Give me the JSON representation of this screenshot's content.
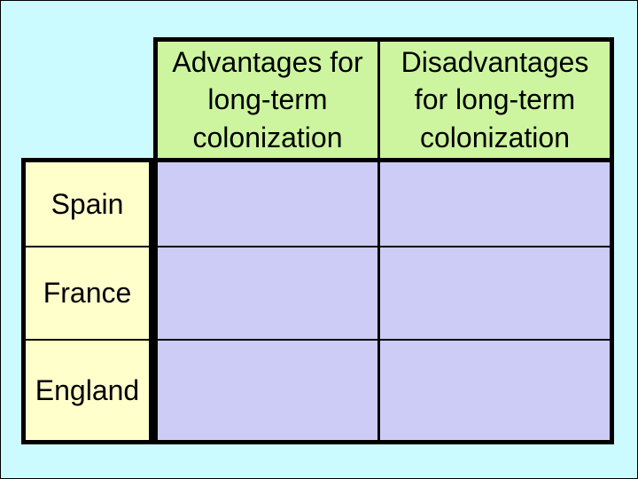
{
  "page": {
    "background_color": "#ccfbff",
    "frame_border_color": "#000000"
  },
  "colors": {
    "header_bg": "#cdf5a0",
    "row_label_bg": "#ffffcc",
    "body_cell_bg": "#cdccf6",
    "grid_line": "#000000",
    "text": "#000000"
  },
  "table": {
    "column_headers": [
      {
        "label": "Advantages for long-term colonization"
      },
      {
        "label": "Disadvantages for long-term colonization"
      }
    ],
    "rows": [
      {
        "label": "Spain",
        "cells": [
          "",
          ""
        ]
      },
      {
        "label": "France",
        "cells": [
          "",
          ""
        ]
      },
      {
        "label": "England",
        "cells": [
          "",
          ""
        ]
      }
    ]
  }
}
